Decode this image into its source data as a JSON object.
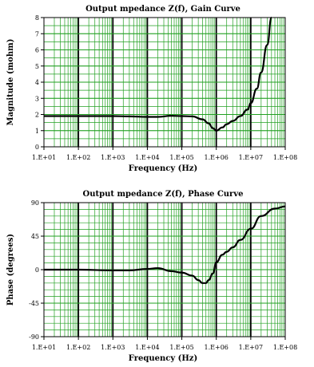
{
  "chart_data": [
    {
      "type": "line",
      "title": "Output  mpedance Z(f), Gain Curve",
      "xlabel": "Frequency  (Hz)",
      "ylabel": "Magnitude (mohm)",
      "xscale": "log",
      "xlim": [
        10,
        100000000
      ],
      "ylim": [
        0,
        8
      ],
      "grid": true,
      "xticks": [
        "1.E+01",
        "1.E+02",
        "1.E+03",
        "1.E+04",
        "1.E+05",
        "1.E+06",
        "1.E+07",
        "1.E+08"
      ],
      "yticks": [
        "0",
        "1",
        "2",
        "3",
        "4",
        "5",
        "6",
        "7",
        "8"
      ],
      "colors": {
        "grid": "#22a022",
        "major_grid": "#000000",
        "line": "#000000"
      },
      "series": [
        {
          "x": [
            10,
            100,
            1000,
            3000,
            10000,
            20000,
            50000,
            100000,
            200000,
            400000,
            600000,
            800000,
            1000000,
            1500000,
            2000000,
            3000000,
            5000000,
            8000000,
            10000000,
            15000000,
            20000000,
            30000000,
            40000000
          ],
          "values": [
            1.9,
            1.9,
            1.9,
            1.88,
            1.85,
            1.85,
            1.92,
            1.9,
            1.88,
            1.7,
            1.45,
            1.15,
            1.0,
            1.2,
            1.4,
            1.6,
            1.9,
            2.3,
            2.7,
            3.6,
            4.6,
            6.3,
            8.0
          ]
        }
      ]
    },
    {
      "type": "line",
      "title": "Output  mpedance Z(f), Phase Curve",
      "xlabel": "Frequency  (Hz)",
      "ylabel": "Phase  (degrees)",
      "xscale": "log",
      "xlim": [
        10,
        100000000
      ],
      "ylim": [
        -90,
        90
      ],
      "grid": true,
      "xticks": [
        "1.E+01",
        "1.E+02",
        "1.E+03",
        "1.E+04",
        "1.E+05",
        "1.E+06",
        "1.E+07",
        "1.E+08"
      ],
      "yticks": [
        "90",
        "45",
        "0",
        "-45",
        "-90"
      ],
      "colors": {
        "grid": "#22a022",
        "major_grid": "#000000",
        "line": "#000000"
      },
      "series": [
        {
          "x": [
            10,
            100,
            1000,
            3000,
            10000,
            20000,
            50000,
            100000,
            200000,
            300000,
            400000,
            500000,
            600000,
            800000,
            1000000,
            1500000,
            2000000,
            3000000,
            5000000,
            10000000,
            20000000,
            50000000,
            100000000
          ],
          "values": [
            0,
            0,
            -1,
            -1,
            1,
            2,
            -2,
            -4,
            -8,
            -14,
            -18,
            -18,
            -14,
            -5,
            10,
            20,
            24,
            30,
            40,
            55,
            72,
            82,
            85
          ]
        }
      ]
    }
  ]
}
